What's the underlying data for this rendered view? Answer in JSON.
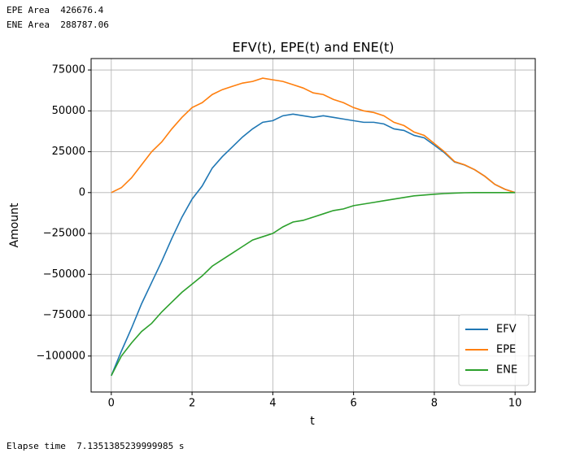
{
  "output_lines": [
    "EPE Area  426676.4",
    "ENE Area  288787.06"
  ],
  "footer": "Elapse time  7.1351385239999985 s",
  "chart_data": {
    "type": "line",
    "title": "EFV(t), EPE(t) and ENE(t)",
    "x_label": "t",
    "y_label": "Amount",
    "x": [
      0,
      0.25,
      0.5,
      0.75,
      1,
      1.25,
      1.5,
      1.75,
      2,
      2.25,
      2.5,
      2.75,
      3,
      3.25,
      3.5,
      3.75,
      4,
      4.25,
      4.5,
      4.75,
      5,
      5.25,
      5.5,
      5.75,
      6,
      6.25,
      6.5,
      6.75,
      7,
      7.25,
      7.5,
      7.75,
      8,
      8.25,
      8.5,
      8.75,
      9,
      9.25,
      9.5,
      9.75,
      10
    ],
    "series": [
      {
        "name": "EFV",
        "color": "#1f77b4",
        "values": [
          -112000,
          -97000,
          -83000,
          -68000,
          -55000,
          -42000,
          -28000,
          -15000,
          -4000,
          4000,
          15000,
          22000,
          28000,
          34000,
          39000,
          43000,
          44000,
          47000,
          48000,
          47000,
          46000,
          47000,
          46000,
          45000,
          44000,
          43000,
          43000,
          42000,
          39000,
          38000,
          35000,
          33500,
          29000,
          24400,
          18700,
          16900,
          14000,
          10000,
          5000,
          2000,
          0
        ]
      },
      {
        "name": "EPE",
        "color": "#ff7f0e",
        "values": [
          0,
          3000,
          9000,
          17000,
          25000,
          31000,
          39000,
          46000,
          52000,
          55000,
          60000,
          63000,
          65000,
          67000,
          68000,
          70000,
          69000,
          68000,
          66000,
          64000,
          61000,
          60000,
          57000,
          55000,
          52000,
          50000,
          49000,
          47000,
          43000,
          41000,
          37000,
          35000,
          30000,
          25000,
          19000,
          17000,
          14000,
          10000,
          5000,
          2000,
          0
        ]
      },
      {
        "name": "ENE",
        "color": "#2ca02c",
        "values": [
          -112000,
          -100000,
          -92000,
          -85000,
          -80000,
          -73000,
          -67000,
          -61000,
          -56000,
          -51000,
          -45000,
          -41000,
          -37000,
          -33000,
          -29000,
          -27000,
          -25000,
          -21000,
          -18000,
          -17000,
          -15000,
          -13000,
          -11000,
          -10000,
          -8000,
          -7000,
          -6000,
          -5000,
          -4000,
          -3000,
          -2000,
          -1500,
          -1000,
          -600,
          -300,
          -100,
          0,
          0,
          0,
          0,
          0
        ]
      }
    ],
    "xlim": [
      -0.5,
      10.5
    ],
    "ylim": [
      -122000,
      82000
    ],
    "xticks": [
      0,
      2,
      4,
      6,
      8,
      10
    ],
    "yticks": [
      {
        "value": -100000,
        "label": "−100000"
      },
      {
        "value": -75000,
        "label": "−75000"
      },
      {
        "value": -50000,
        "label": "−50000"
      },
      {
        "value": -25000,
        "label": "−25000"
      },
      0,
      25000,
      50000,
      75000
    ],
    "grid": true,
    "legend": "lower-right"
  }
}
